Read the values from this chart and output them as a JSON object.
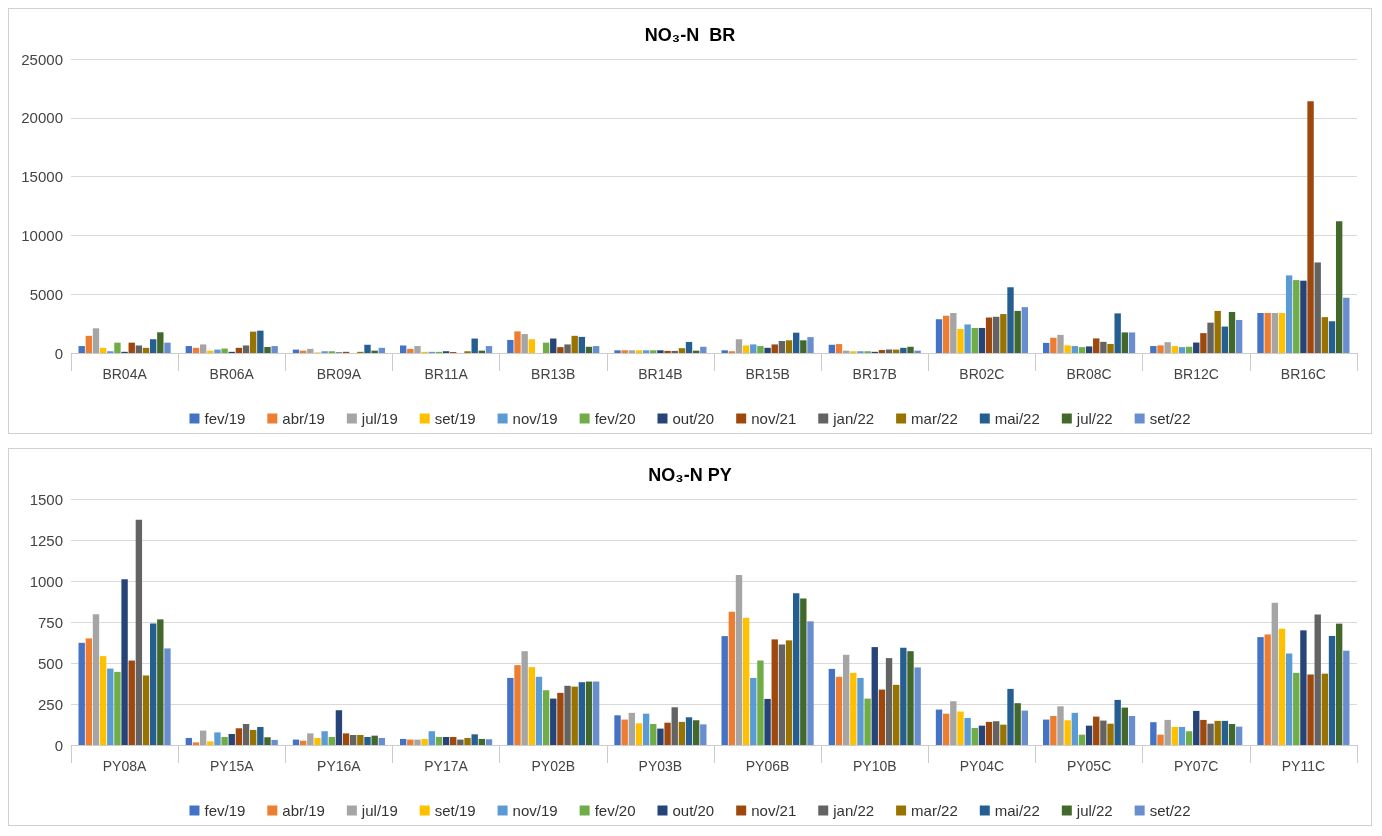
{
  "chart_data": [
    {
      "type": "bar",
      "title": "NO₃-N  BR",
      "categories": [
        "BR04A",
        "BR06A",
        "BR09A",
        "BR11A",
        "BR13B",
        "BR14B",
        "BR15B",
        "BR17B",
        "BR02C",
        "BR08C",
        "BR12C",
        "BR16C"
      ],
      "ylim": [
        0,
        25000
      ],
      "yticks": [
        0,
        5000,
        10000,
        15000,
        20000,
        25000
      ],
      "grid": "y",
      "legend": "bottom",
      "series": [
        {
          "name": "fev/19",
          "color": "#4472c4",
          "values": [
            590,
            590,
            290,
            640,
            1110,
            230,
            230,
            700,
            2870,
            860,
            590,
            3400
          ]
        },
        {
          "name": "abr/19",
          "color": "#ed7d31",
          "values": [
            1460,
            440,
            200,
            350,
            1840,
            230,
            150,
            760,
            3170,
            1300,
            650,
            3400
          ]
        },
        {
          "name": "jul/19",
          "color": "#a5a5a5",
          "values": [
            2100,
            730,
            350,
            590,
            1610,
            230,
            1170,
            200,
            3400,
            1540,
            920,
            3400
          ]
        },
        {
          "name": "set/19",
          "color": "#ffc000",
          "values": [
            440,
            200,
            50,
            100,
            1170,
            230,
            640,
            150,
            2040,
            650,
            590,
            3400
          ]
        },
        {
          "name": "nov/19",
          "color": "#5b9bd5",
          "values": [
            150,
            290,
            150,
            100,
            null,
            230,
            730,
            150,
            2430,
            590,
            500,
            6600
          ]
        },
        {
          "name": "fev/20",
          "color": "#70ad47",
          "values": [
            880,
            380,
            150,
            100,
            880,
            230,
            590,
            150,
            2130,
            500,
            530,
            6200
          ]
        },
        {
          "name": "out/20",
          "color": "#264478",
          "values": [
            100,
            100,
            50,
            150,
            1230,
            230,
            440,
            100,
            2130,
            560,
            890,
            6150
          ]
        },
        {
          "name": "nov/21",
          "color": "#9e480e",
          "values": [
            880,
            440,
            100,
            80,
            500,
            180,
            730,
            250,
            3020,
            1240,
            1690,
            21400
          ]
        },
        {
          "name": "jan/22",
          "color": "#636363",
          "values": [
            640,
            640,
            null,
            null,
            730,
            180,
            1020,
            300,
            3080,
            950,
            2580,
            7700
          ]
        },
        {
          "name": "mar/22",
          "color": "#997300",
          "values": [
            440,
            1820,
            100,
            150,
            1460,
            410,
            1080,
            290,
            3310,
            770,
            3580,
            3050
          ]
        },
        {
          "name": "mai/22",
          "color": "#255e91",
          "values": [
            1170,
            1900,
            700,
            1230,
            1370,
            940,
            1730,
            440,
            5590,
            3370,
            2250,
            2700
          ]
        },
        {
          "name": "jul/22",
          "color": "#43682b",
          "values": [
            1760,
            500,
            200,
            200,
            530,
            200,
            1080,
            530,
            3580,
            1750,
            3490,
            11200
          ]
        },
        {
          "name": "set/22",
          "color": "#698ed0",
          "values": [
            880,
            590,
            440,
            590,
            590,
            530,
            1350,
            200,
            3900,
            1750,
            2810,
            4700
          ]
        }
      ]
    },
    {
      "type": "bar",
      "title": "NO₃-N PY",
      "categories": [
        "PY08A",
        "PY15A",
        "PY16A",
        "PY17A",
        "PY02B",
        "PY03B",
        "PY06B",
        "PY10B",
        "PY04C",
        "PY05C",
        "PY07C",
        "PY11C"
      ],
      "ylim": [
        0,
        1500
      ],
      "yticks": [
        0,
        250,
        500,
        750,
        1000,
        1250,
        1500
      ],
      "grid": "y",
      "legend": "bottom",
      "series": [
        {
          "name": "fev/19",
          "color": "#4472c4",
          "values": [
            623,
            43,
            33,
            37,
            409,
            181,
            664,
            464,
            216,
            155,
            139,
            658
          ]
        },
        {
          "name": "abr/19",
          "color": "#ed7d31",
          "values": [
            650,
            16,
            26,
            33,
            487,
            155,
            813,
            416,
            191,
            177,
            63,
            674
          ]
        },
        {
          "name": "jul/19",
          "color": "#a5a5a5",
          "values": [
            797,
            88,
            71,
            33,
            572,
            196,
            1037,
            550,
            267,
            236,
            153,
            868
          ]
        },
        {
          "name": "set/19",
          "color": "#ffc000",
          "values": [
            542,
            22,
            43,
            37,
            475,
            132,
            776,
            440,
            204,
            151,
            110,
            709
          ]
        },
        {
          "name": "nov/19",
          "color": "#5b9bd5",
          "values": [
            466,
            77,
            84,
            84,
            416,
            191,
            409,
            409,
            165,
            196,
            110,
            558
          ]
        },
        {
          "name": "fev/20",
          "color": "#70ad47",
          "values": [
            446,
            49,
            49,
            49,
            334,
            128,
            515,
            283,
            104,
            63,
            84,
            440
          ]
        },
        {
          "name": "out/20",
          "color": "#264478",
          "values": [
            1010,
            67,
            212,
            49,
            283,
            100,
            281,
            597,
            118,
            118,
            208,
            699
          ]
        },
        {
          "name": "nov/21",
          "color": "#9e480e",
          "values": [
            515,
            102,
            71,
            49,
            318,
            136,
            644,
            338,
            141,
            173,
            153,
            430
          ]
        },
        {
          "name": "jan/22",
          "color": "#636363",
          "values": [
            1373,
            128,
            61,
            33,
            361,
            230,
            613,
            530,
            145,
            149,
            130,
            795
          ]
        },
        {
          "name": "mar/22",
          "color": "#997300",
          "values": [
            424,
            92,
            61,
            43,
            356,
            141,
            638,
            367,
            124,
            130,
            147,
            435
          ]
        },
        {
          "name": "mai/22",
          "color": "#255e91",
          "values": [
            741,
            110,
            49,
            65,
            383,
            169,
            925,
            593,
            342,
            275,
            147,
            665
          ]
        },
        {
          "name": "jul/22",
          "color": "#43682b",
          "values": [
            766,
            47,
            57,
            37,
            387,
            151,
            894,
            572,
            255,
            228,
            128,
            740
          ]
        },
        {
          "name": "set/22",
          "color": "#698ed0",
          "values": [
            589,
            31,
            43,
            35,
            387,
            126,
            754,
            473,
            210,
            177,
            112,
            575
          ]
        }
      ]
    }
  ]
}
